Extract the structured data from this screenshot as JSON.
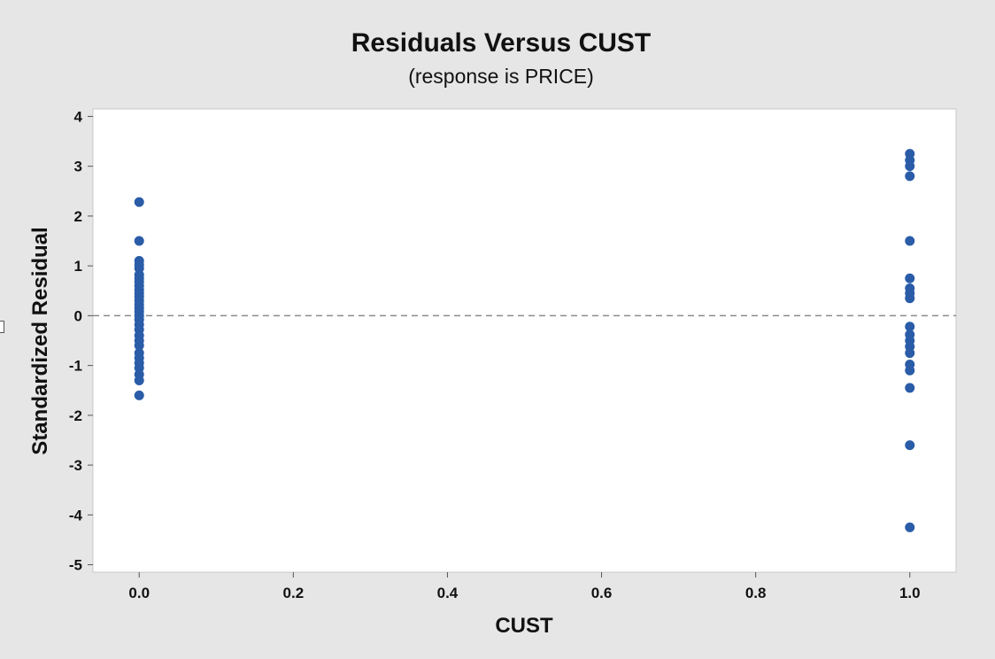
{
  "chart_data": {
    "type": "scatter",
    "title": "Residuals Versus CUST",
    "subtitle": "(response is PRICE)",
    "xlabel": "CUST",
    "ylabel": "Standardized Residual",
    "xlim": [
      -0.06,
      1.06
    ],
    "ylim": [
      -5.15,
      4.15
    ],
    "x_ticks": [
      {
        "value": 0.0,
        "label": "0.0"
      },
      {
        "value": 0.2,
        "label": "0.2"
      },
      {
        "value": 0.4,
        "label": "0.4"
      },
      {
        "value": 0.6,
        "label": "0.6"
      },
      {
        "value": 0.8,
        "label": "0.8"
      },
      {
        "value": 1.0,
        "label": "1.0"
      }
    ],
    "y_ticks": [
      {
        "value": 4,
        "label": "4"
      },
      {
        "value": 3,
        "label": "3"
      },
      {
        "value": 2,
        "label": "2"
      },
      {
        "value": 1,
        "label": "1"
      },
      {
        "value": 0,
        "label": "0"
      },
      {
        "value": -1,
        "label": "-1"
      },
      {
        "value": -2,
        "label": "-2"
      },
      {
        "value": -3,
        "label": "-3"
      },
      {
        "value": -4,
        "label": "-4"
      },
      {
        "value": -5,
        "label": "-5"
      }
    ],
    "reference_line": {
      "y": 0,
      "style": "dashed"
    },
    "grid": false,
    "marker_color": "#2a5ca8",
    "reference_color": "#8c8c8c",
    "points": [
      {
        "x": 0,
        "y": 2.28
      },
      {
        "x": 0,
        "y": 1.5
      },
      {
        "x": 0,
        "y": 1.1
      },
      {
        "x": 0,
        "y": 1.02
      },
      {
        "x": 0,
        "y": 0.95
      },
      {
        "x": 0,
        "y": 0.82
      },
      {
        "x": 0,
        "y": 0.75
      },
      {
        "x": 0,
        "y": 0.68
      },
      {
        "x": 0,
        "y": 0.6
      },
      {
        "x": 0,
        "y": 0.52
      },
      {
        "x": 0,
        "y": 0.45
      },
      {
        "x": 0,
        "y": 0.38
      },
      {
        "x": 0,
        "y": 0.3
      },
      {
        "x": 0,
        "y": 0.22
      },
      {
        "x": 0,
        "y": 0.15
      },
      {
        "x": 0,
        "y": 0.08
      },
      {
        "x": 0,
        "y": 0.0
      },
      {
        "x": 0,
        "y": -0.08
      },
      {
        "x": 0,
        "y": -0.18
      },
      {
        "x": 0,
        "y": -0.28
      },
      {
        "x": 0,
        "y": -0.4
      },
      {
        "x": 0,
        "y": -0.5
      },
      {
        "x": 0,
        "y": -0.6
      },
      {
        "x": 0,
        "y": -0.75
      },
      {
        "x": 0,
        "y": -0.85
      },
      {
        "x": 0,
        "y": -0.95
      },
      {
        "x": 0,
        "y": -1.05
      },
      {
        "x": 0,
        "y": -1.18
      },
      {
        "x": 0,
        "y": -1.3
      },
      {
        "x": 0,
        "y": -1.6
      },
      {
        "x": 1,
        "y": 3.25
      },
      {
        "x": 1,
        "y": 3.12
      },
      {
        "x": 1,
        "y": 3.0
      },
      {
        "x": 1,
        "y": 2.8
      },
      {
        "x": 1,
        "y": 1.5
      },
      {
        "x": 1,
        "y": 0.75
      },
      {
        "x": 1,
        "y": 0.55
      },
      {
        "x": 1,
        "y": 0.45
      },
      {
        "x": 1,
        "y": 0.35
      },
      {
        "x": 1,
        "y": -0.22
      },
      {
        "x": 1,
        "y": -0.38
      },
      {
        "x": 1,
        "y": -0.5
      },
      {
        "x": 1,
        "y": -0.62
      },
      {
        "x": 1,
        "y": -0.75
      },
      {
        "x": 1,
        "y": -0.98
      },
      {
        "x": 1,
        "y": -1.1
      },
      {
        "x": 1,
        "y": -1.45
      },
      {
        "x": 1,
        "y": -2.6
      },
      {
        "x": 1,
        "y": -4.25
      }
    ]
  }
}
